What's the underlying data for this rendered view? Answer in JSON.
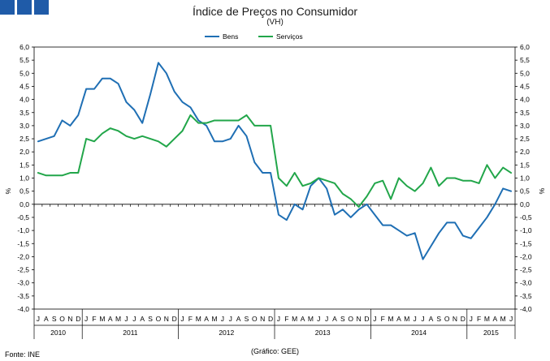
{
  "header": {
    "logo_icon": "ine-logo-squares-icon"
  },
  "footer": {
    "source": "Fonte: INE",
    "credit": "(Gráfico: GEE)"
  },
  "chart_data": {
    "type": "line",
    "title": "Índice de Preços no Consumidor",
    "subtitle": "(VH)",
    "ylabel_left": "%",
    "ylabel_right": "%",
    "ylim": [
      -4.0,
      6.0
    ],
    "ytick_step": 0.5,
    "ytick_labels": [
      "-4,0",
      "-3,5",
      "-3,0",
      "-2,5",
      "-2,0",
      "-1,5",
      "-1,0",
      "-0,5",
      "0,0",
      "0,5",
      "1,0",
      "1,5",
      "2,0",
      "2,5",
      "3,0",
      "3,5",
      "4,0",
      "4,5",
      "5,0",
      "5,5",
      "6,0"
    ],
    "months": [
      "J",
      "A",
      "S",
      "O",
      "N",
      "D",
      "J",
      "F",
      "M",
      "A",
      "M",
      "J",
      "J",
      "A",
      "S",
      "O",
      "N",
      "D",
      "J",
      "F",
      "M",
      "A",
      "M",
      "J",
      "J",
      "A",
      "S",
      "O",
      "N",
      "D",
      "J",
      "F",
      "M",
      "A",
      "M",
      "J",
      "J",
      "A",
      "S",
      "O",
      "N",
      "D",
      "J",
      "F",
      "M",
      "A",
      "M",
      "J",
      "J",
      "A",
      "S",
      "O",
      "N",
      "D",
      "J",
      "F",
      "M",
      "A",
      "M",
      "J"
    ],
    "years": [
      {
        "label": "2010",
        "start": 0,
        "end": 6
      },
      {
        "label": "2011",
        "start": 6,
        "end": 18
      },
      {
        "label": "2012",
        "start": 18,
        "end": 30
      },
      {
        "label": "2013",
        "start": 30,
        "end": 42
      },
      {
        "label": "2014",
        "start": 42,
        "end": 54
      },
      {
        "label": "2015",
        "start": 54,
        "end": 60
      }
    ],
    "legend": [
      "Bens",
      "Serviços"
    ],
    "legend_position": "top-center",
    "series": [
      {
        "name": "Bens",
        "color": "#1f6fb4",
        "values": [
          2.4,
          2.5,
          2.6,
          3.2,
          3.0,
          3.4,
          4.4,
          4.4,
          4.8,
          4.8,
          4.6,
          3.9,
          3.6,
          3.1,
          4.2,
          5.4,
          5.0,
          4.3,
          3.9,
          3.7,
          3.2,
          3.0,
          2.4,
          2.4,
          2.5,
          3.0,
          2.6,
          1.6,
          1.2,
          1.2,
          -0.4,
          -0.6,
          0.0,
          -0.2,
          0.7,
          1.0,
          0.6,
          -0.4,
          -0.2,
          -0.5,
          -0.2,
          0.0,
          -0.4,
          -0.8,
          -0.8,
          -1.0,
          -1.2,
          -1.1,
          -2.1,
          -1.6,
          -1.1,
          -0.7,
          -0.7,
          -1.2,
          -1.3,
          -0.9,
          -0.5,
          0.0,
          0.6,
          0.5
        ]
      },
      {
        "name": "Serviços",
        "color": "#22a64a",
        "values": [
          1.2,
          1.1,
          1.1,
          1.1,
          1.2,
          1.2,
          2.5,
          2.4,
          2.7,
          2.9,
          2.8,
          2.6,
          2.5,
          2.6,
          2.5,
          2.4,
          2.2,
          2.5,
          2.8,
          3.4,
          3.1,
          3.1,
          3.2,
          3.2,
          3.2,
          3.2,
          3.4,
          3.0,
          3.0,
          3.0,
          1.0,
          0.7,
          1.2,
          0.7,
          0.8,
          1.0,
          0.9,
          0.8,
          0.4,
          0.2,
          -0.1,
          0.3,
          0.8,
          0.9,
          0.2,
          1.0,
          0.7,
          0.5,
          0.8,
          1.4,
          0.7,
          1.0,
          1.0,
          0.9,
          0.9,
          0.8,
          1.5,
          1.0,
          1.4,
          1.2
        ]
      }
    ]
  }
}
